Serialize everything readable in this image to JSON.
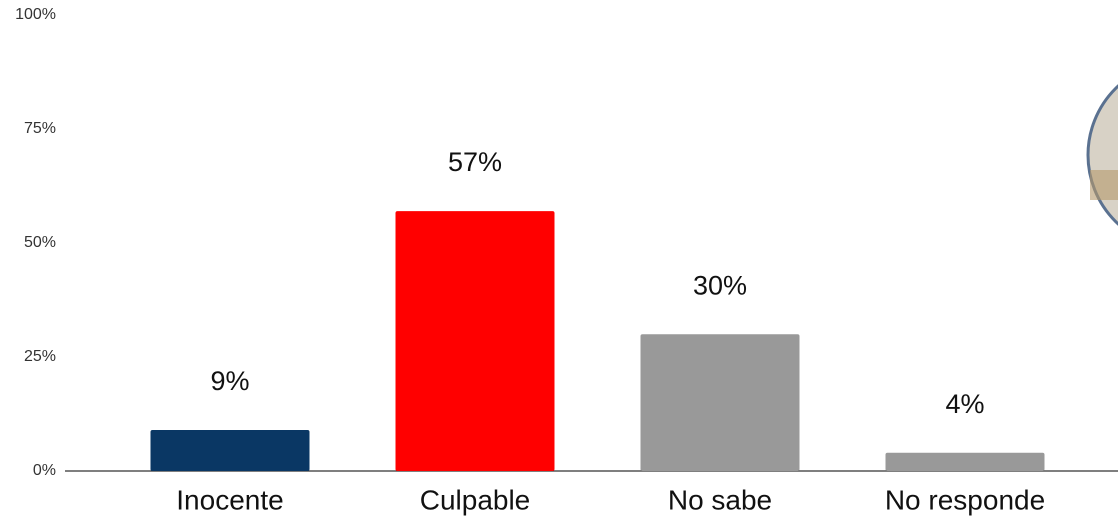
{
  "chart_data": {
    "type": "bar",
    "categories": [
      "Inocente",
      "Culpable",
      "No sabe",
      "No responde"
    ],
    "values": [
      9,
      57,
      30,
      4
    ],
    "value_labels": [
      "9%",
      "57%",
      "30%",
      "4%"
    ],
    "colors": [
      "#0a3764",
      "#ff0000",
      "#999999",
      "#999999"
    ],
    "ylim": [
      0,
      100
    ],
    "yticks": [
      {
        "value": 0,
        "label": "0%"
      },
      {
        "value": 25,
        "label": "25%"
      },
      {
        "value": 50,
        "label": "50%"
      },
      {
        "value": 75,
        "label": "75%"
      },
      {
        "value": 100,
        "label": "100%"
      }
    ],
    "grid": false
  }
}
